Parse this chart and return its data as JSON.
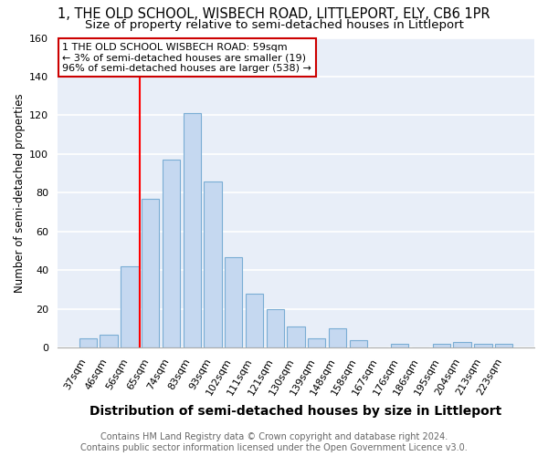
{
  "title": "1, THE OLD SCHOOL, WISBECH ROAD, LITTLEPORT, ELY, CB6 1PR",
  "subtitle": "Size of property relative to semi-detached houses in Littleport",
  "xlabel": "Distribution of semi-detached houses by size in Littleport",
  "ylabel": "Number of semi-detached properties",
  "categories": [
    "37sqm",
    "46sqm",
    "56sqm",
    "65sqm",
    "74sqm",
    "83sqm",
    "93sqm",
    "102sqm",
    "111sqm",
    "121sqm",
    "130sqm",
    "139sqm",
    "148sqm",
    "158sqm",
    "167sqm",
    "176sqm",
    "186sqm",
    "195sqm",
    "204sqm",
    "213sqm",
    "223sqm"
  ],
  "values": [
    5,
    7,
    42,
    77,
    97,
    121,
    86,
    47,
    28,
    20,
    11,
    5,
    10,
    4,
    0,
    2,
    0,
    2,
    3,
    2,
    2
  ],
  "bar_color": "#c5d8f0",
  "bar_edge_color": "#7aadd4",
  "red_line_x": 2.5,
  "annotation_title": "1 THE OLD SCHOOL WISBECH ROAD: 59sqm",
  "annotation_line1": "← 3% of semi-detached houses are smaller (19)",
  "annotation_line2": "96% of semi-detached houses are larger (538) →",
  "annotation_box_color": "#ffffff",
  "annotation_box_edge": "#cc0000",
  "footer": "Contains HM Land Registry data © Crown copyright and database right 2024.\nContains public sector information licensed under the Open Government Licence v3.0.",
  "ylim": [
    0,
    160
  ],
  "yticks": [
    0,
    20,
    40,
    60,
    80,
    100,
    120,
    140,
    160
  ],
  "background_color": "#e8eef8",
  "grid_color": "#ffffff",
  "title_fontsize": 10.5,
  "subtitle_fontsize": 9.5,
  "xlabel_fontsize": 10,
  "ylabel_fontsize": 8.5,
  "tick_fontsize": 8,
  "annotation_fontsize": 8,
  "footer_fontsize": 7
}
